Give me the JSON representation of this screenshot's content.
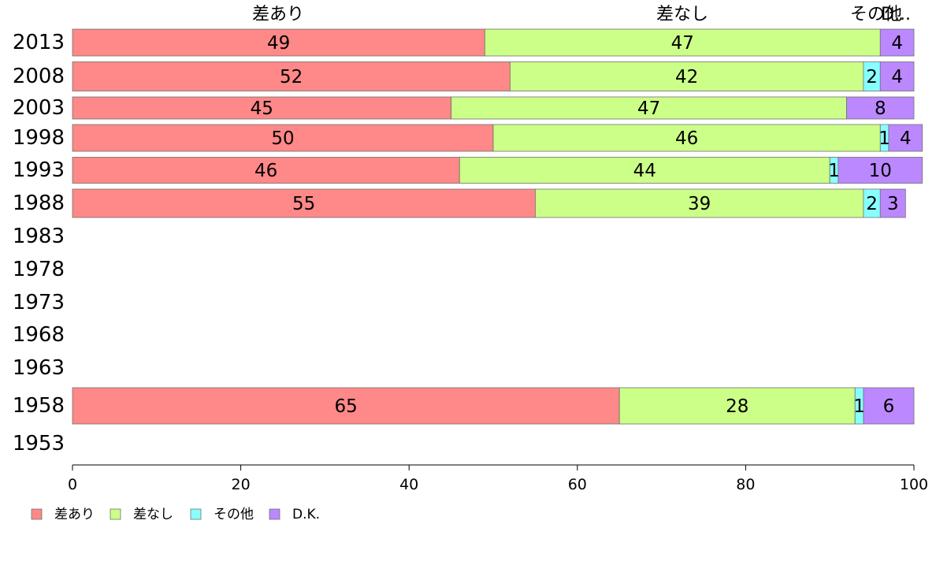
{
  "chart_data": {
    "type": "bar",
    "orientation": "horizontal",
    "stacked": true,
    "categories": [
      "2013",
      "2008",
      "2003",
      "1998",
      "1993",
      "1988",
      "1983",
      "1978",
      "1973",
      "1968",
      "1963",
      "1958",
      "1953"
    ],
    "series": [
      {
        "name": "差あり",
        "color": "#ff8888",
        "values": [
          49,
          52,
          45,
          50,
          46,
          55,
          null,
          null,
          null,
          null,
          null,
          65,
          null
        ]
      },
      {
        "name": "差なし",
        "color": "#ccff88",
        "values": [
          47,
          42,
          47,
          46,
          44,
          39,
          null,
          null,
          null,
          null,
          null,
          28,
          null
        ]
      },
      {
        "name": "その他",
        "color": "#88ffff",
        "values": [
          0,
          2,
          0,
          1,
          1,
          2,
          null,
          null,
          null,
          null,
          null,
          1,
          null
        ]
      },
      {
        "name": "D.K.",
        "color": "#bb88ff",
        "values": [
          4,
          4,
          8,
          4,
          10,
          3,
          null,
          null,
          null,
          null,
          null,
          6,
          null
        ]
      }
    ],
    "xlim": [
      0,
      100
    ],
    "xticks": [
      "0",
      "20",
      "40",
      "60",
      "80",
      "100"
    ],
    "top_labels": [
      "差あり",
      "差なし",
      "その他",
      "D..."
    ],
    "legend_position": "bottom-left"
  }
}
